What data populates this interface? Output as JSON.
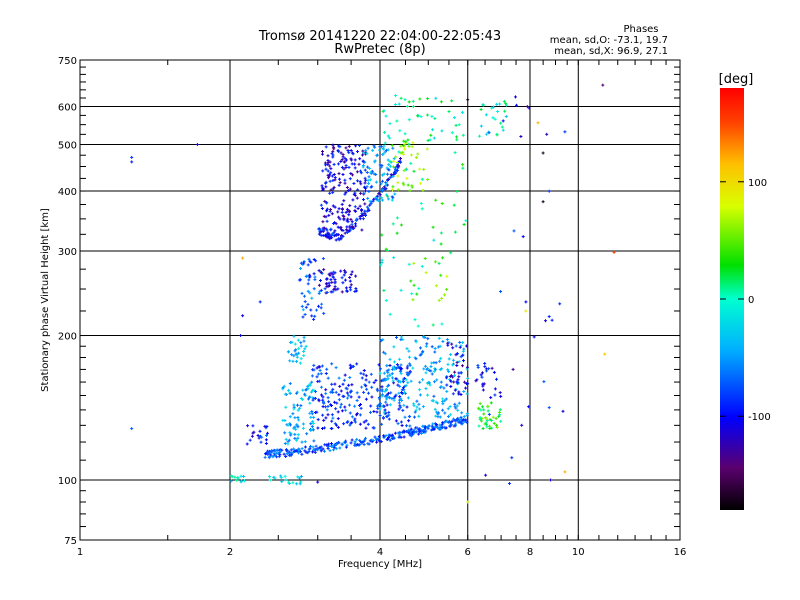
{
  "chart_data": {
    "type": "scatter",
    "title": "Tromsø 20141220 22:04:00-22:05:43",
    "subtitle": "RwPretec (8p)",
    "xlabel": "Frequency [MHz]",
    "ylabel": "Stationary phase Virtual Height [km]",
    "x_scale": "log",
    "y_scale": "log",
    "xlim": [
      1,
      16
    ],
    "ylim": [
      75,
      750
    ],
    "x_ticks": [
      "1",
      "2",
      "4",
      "6",
      "8",
      "10",
      "16"
    ],
    "y_ticks": [
      "75",
      "100",
      "200",
      "300",
      "400",
      "500",
      "600",
      "750"
    ],
    "grid": true,
    "phases_title": "Phases",
    "phases_o": "mean, sd,O: -73.1, 19.7",
    "phases_x": "mean, sd,X:  96.9, 27.1",
    "colorbar": {
      "label": "[deg]",
      "ticks": [
        "100",
        "0",
        "-100"
      ],
      "tick_values": [
        100,
        0,
        -100
      ],
      "range": [
        -180,
        180
      ]
    },
    "traces": [
      {
        "kind": "band",
        "x": [
          2.35,
          2.6,
          3.0,
          3.5,
          4.0,
          4.5,
          5.0,
          5.5,
          6.0
        ],
        "y": [
          113,
          114,
          116,
          119,
          122,
          125,
          128,
          131,
          134
        ],
        "color": -75,
        "density": 300
      },
      {
        "kind": "cluster",
        "x": [
          2.55,
          2.95
        ],
        "y": [
          118,
          160
        ],
        "color": -40,
        "density": 90
      },
      {
        "kind": "cluster",
        "x": [
          2.6,
          2.85
        ],
        "y": [
          175,
          200
        ],
        "color": -30,
        "density": 30
      },
      {
        "kind": "cluster",
        "x": [
          2.9,
          4.6
        ],
        "y": [
          128,
          175
        ],
        "color": -85,
        "density": 260
      },
      {
        "kind": "cluster",
        "x": [
          4.0,
          6.0
        ],
        "y": [
          135,
          200
        ],
        "color": -45,
        "density": 200
      },
      {
        "kind": "cluster",
        "x": [
          5.4,
          6.0
        ],
        "y": [
          150,
          195
        ],
        "color": -110,
        "density": 40
      },
      {
        "kind": "cluster",
        "x": [
          6.3,
          7.0
        ],
        "y": [
          128,
          145
        ],
        "color": 35,
        "density": 40
      },
      {
        "kind": "cluster",
        "x": [
          6.2,
          7.0
        ],
        "y": [
          148,
          175
        ],
        "color": -100,
        "density": 25
      },
      {
        "kind": "cluster",
        "x": [
          2.75,
          3.1
        ],
        "y": [
          215,
          290
        ],
        "color": -70,
        "density": 50
      },
      {
        "kind": "cluster",
        "x": [
          3.0,
          3.6
        ],
        "y": [
          245,
          275
        ],
        "color": -105,
        "density": 60
      },
      {
        "kind": "band",
        "x": [
          3.0,
          3.3,
          3.7,
          4.1,
          4.4
        ],
        "y": [
          330,
          320,
          355,
          410,
          460
        ],
        "color": -95,
        "density": 120
      },
      {
        "kind": "cluster",
        "x": [
          3.05,
          3.75
        ],
        "y": [
          330,
          500
        ],
        "color": -110,
        "density": 200
      },
      {
        "kind": "cluster",
        "x": [
          3.7,
          4.3
        ],
        "y": [
          380,
          500
        ],
        "color": -50,
        "density": 80
      },
      {
        "kind": "cluster",
        "x": [
          4.2,
          5.0
        ],
        "y": [
          400,
          510
        ],
        "color": 60,
        "density": 40
      },
      {
        "kind": "cluster",
        "x": [
          4.0,
          5.8
        ],
        "y": [
          500,
          640
        ],
        "color": 10,
        "density": 40
      },
      {
        "kind": "cluster",
        "x": [
          6.3,
          7.2
        ],
        "y": [
          520,
          620
        ],
        "color": 0,
        "density": 25
      },
      {
        "kind": "cluster",
        "x": [
          2.0,
          2.15
        ],
        "y": [
          99,
          102
        ],
        "color": -20,
        "density": 12
      },
      {
        "kind": "cluster",
        "x": [
          2.4,
          2.8
        ],
        "y": [
          98,
          102
        ],
        "color": -25,
        "density": 18
      },
      {
        "kind": "cluster",
        "x": [
          2.15,
          2.45
        ],
        "y": [
          118,
          130
        ],
        "color": -90,
        "density": 20
      },
      {
        "kind": "cluster",
        "x": [
          4.5,
          5.5
        ],
        "y": [
          230,
          300
        ],
        "color": 50,
        "density": 15
      },
      {
        "kind": "cluster",
        "x": [
          4.0,
          6.0
        ],
        "y": [
          200,
          600
        ],
        "color": 10,
        "density": 60
      },
      {
        "kind": "cluster",
        "x": [
          6.5,
          9.5
        ],
        "y": [
          90,
          650
        ],
        "color": -90,
        "density": 25
      }
    ],
    "points": [
      {
        "x": 1.27,
        "y": 460,
        "color": -90
      },
      {
        "x": 1.27,
        "y": 470,
        "color": -85
      },
      {
        "x": 1.27,
        "y": 128,
        "color": -70
      },
      {
        "x": 1.72,
        "y": 500,
        "color": -120
      },
      {
        "x": 2.1,
        "y": 200,
        "color": -100
      },
      {
        "x": 2.12,
        "y": 290,
        "color": 120
      },
      {
        "x": 2.12,
        "y": 220,
        "color": -110
      },
      {
        "x": 2.3,
        "y": 235,
        "color": -90
      },
      {
        "x": 6.0,
        "y": 90,
        "color": 80
      },
      {
        "x": 8.8,
        "y": 100,
        "color": -110
      },
      {
        "x": 9.4,
        "y": 104,
        "color": 120
      },
      {
        "x": 8.5,
        "y": 380,
        "color": -170
      },
      {
        "x": 8.5,
        "y": 480,
        "color": -170
      },
      {
        "x": 8.3,
        "y": 555,
        "color": 120
      },
      {
        "x": 7.9,
        "y": 600,
        "color": -150
      },
      {
        "x": 11.2,
        "y": 665,
        "color": -140
      },
      {
        "x": 11.8,
        "y": 298,
        "color": 150
      },
      {
        "x": 11.3,
        "y": 183,
        "color": 110
      },
      {
        "x": 7.85,
        "y": 225,
        "color": 90
      },
      {
        "x": 7.85,
        "y": 235,
        "color": -100
      },
      {
        "x": 7.7,
        "y": 130,
        "color": -120
      },
      {
        "x": 7.4,
        "y": 170,
        "color": -130
      },
      {
        "x": 6.0,
        "y": 620,
        "color": -170
      },
      {
        "x": 3.0,
        "y": 99,
        "color": -110
      }
    ]
  }
}
